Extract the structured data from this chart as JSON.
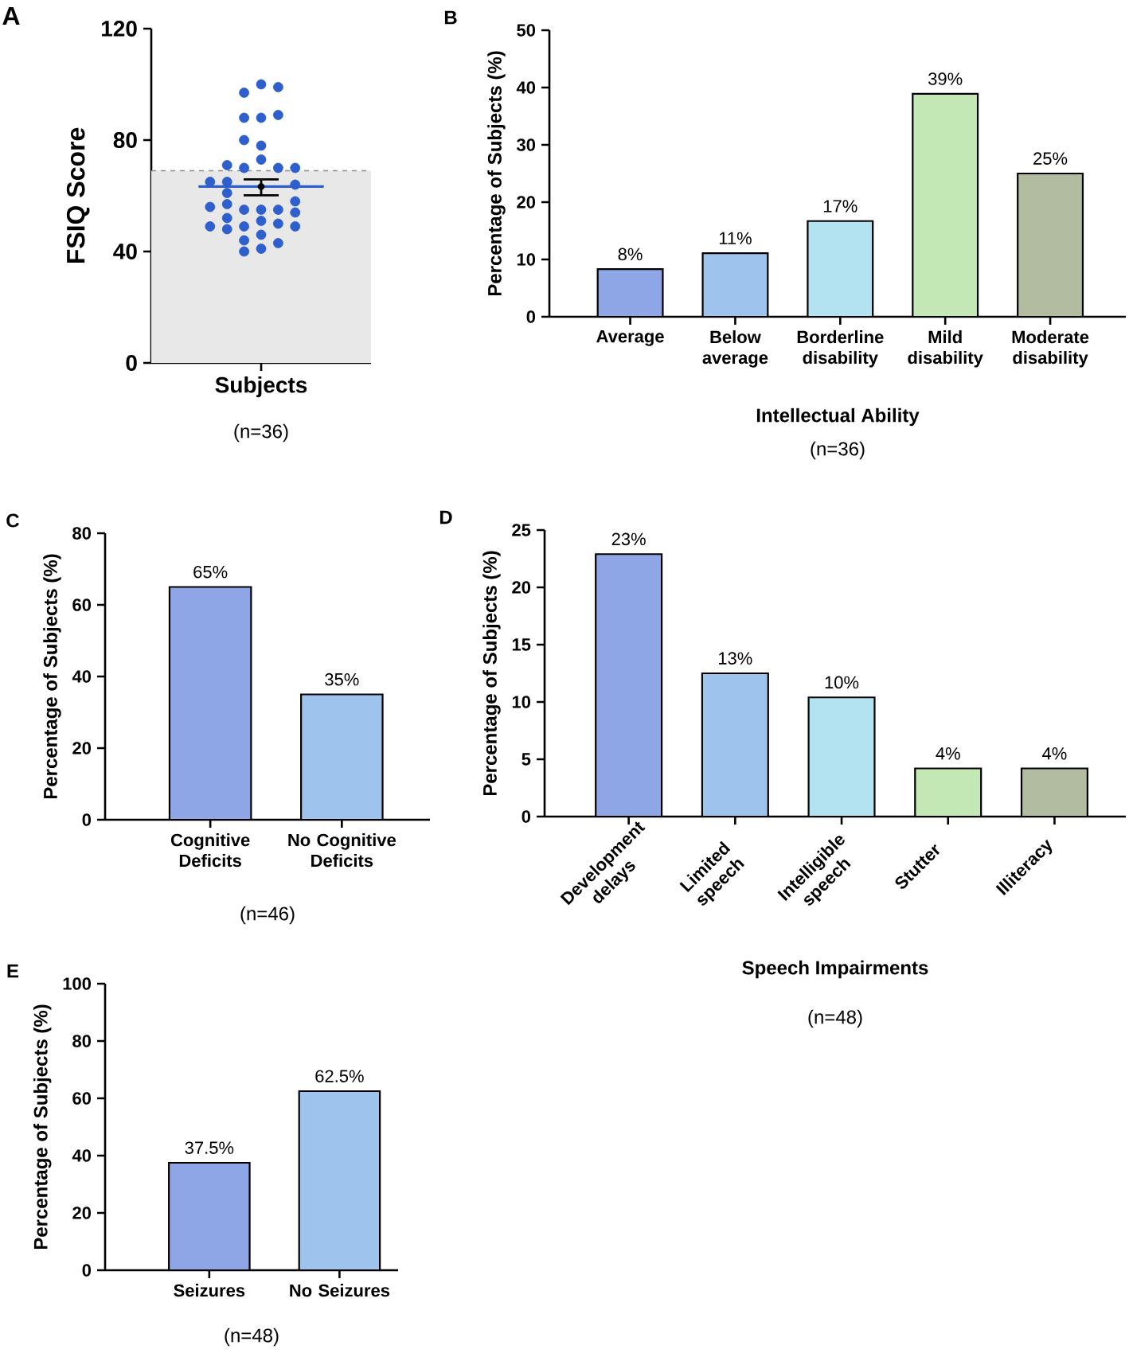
{
  "chart_data": [
    {
      "type": "scatter",
      "title": "A",
      "ylabel": "FSIQ Score",
      "marker": "circle",
      "categories": [
        "Subjects"
      ],
      "ylim": [
        0,
        120
      ],
      "yticks": [
        0,
        40,
        80,
        120
      ],
      "bands": [
        {
          "axis": "y",
          "from": 0,
          "to": 69,
          "color": "#e8e8e8"
        }
      ],
      "ref_lines": [
        {
          "axis": "y",
          "value": 69,
          "line_style": "dashed",
          "color": "#8c8c8c"
        },
        {
          "axis": "y",
          "value": 63.3,
          "line_style": "solid",
          "color": "#2f5fcc"
        }
      ],
      "series": [
        {
          "type": "scatter",
          "color": "#2f5fcc",
          "x": [
            "Subjects",
            "Subjects",
            "Subjects",
            "Subjects",
            "Subjects",
            "Subjects",
            "Subjects",
            "Subjects",
            "Subjects",
            "Subjects",
            "Subjects",
            "Subjects",
            "Subjects",
            "Subjects",
            "Subjects",
            "Subjects",
            "Subjects",
            "Subjects",
            "Subjects",
            "Subjects",
            "Subjects",
            "Subjects",
            "Subjects",
            "Subjects",
            "Subjects",
            "Subjects",
            "Subjects",
            "Subjects",
            "Subjects",
            "Subjects",
            "Subjects",
            "Subjects",
            "Subjects",
            "Subjects",
            "Subjects",
            "Subjects"
          ],
          "values": [
            100,
            97,
            99,
            88,
            88,
            89,
            78,
            80,
            73,
            70,
            70,
            71,
            70,
            65,
            64,
            65,
            61,
            58,
            57,
            55,
            55,
            55,
            56,
            54,
            52,
            51,
            49,
            50,
            49,
            49,
            48,
            46,
            44,
            43,
            41,
            40
          ]
        },
        {
          "type": "scatter",
          "color": "#000000",
          "x": [
            "Subjects"
          ],
          "values": [
            63.3
          ],
          "errors": [
            [
              60.2,
              65.9
            ]
          ]
        }
      ],
      "annotations": [
        "(n=36)"
      ]
    },
    {
      "type": "bar",
      "title": "B",
      "xlabel": "Intellectual Ability",
      "ylabel": "Percentage of Subjects (%)",
      "categories": [
        "Average",
        "Below average",
        "Borderline disability",
        "Mild disability",
        "Moderate disability"
      ],
      "values": [
        8.3,
        11.1,
        16.7,
        38.9,
        25
      ],
      "value_labels": [
        "8%",
        "11%",
        "17%",
        "39%",
        "25%"
      ],
      "colors": [
        "#8fa6e6",
        "#9ec4ee",
        "#b3e3f1",
        "#c4e8b5",
        "#b1bca1"
      ],
      "ylim": [
        0,
        50
      ],
      "yticks": [
        0,
        10,
        20,
        30,
        40,
        50
      ],
      "annotations": [
        "(n=36)"
      ]
    },
    {
      "type": "bar",
      "title": "C",
      "ylabel": "Percentage of Subjects (%)",
      "categories": [
        "Cognitive Deficits",
        "No Cognitive Deficits"
      ],
      "values": [
        65,
        35
      ],
      "value_labels": [
        "65%",
        "35%"
      ],
      "colors": [
        "#8fa6e6",
        "#9ec4ee"
      ],
      "ylim": [
        0,
        80
      ],
      "yticks": [
        0,
        20,
        40,
        60,
        80
      ],
      "annotations": [
        "(n=46)"
      ]
    },
    {
      "type": "bar",
      "title": "D",
      "xlabel": "Speech Impairments",
      "ylabel": "Percentage of Subjects (%)",
      "categories": [
        "Development delays",
        "Limited speech",
        "Intelligible speech",
        "Stutter",
        "Illiteracy"
      ],
      "values": [
        22.9,
        12.5,
        10.4,
        4.2,
        4.2
      ],
      "value_labels": [
        "23%",
        "13%",
        "10%",
        "4%",
        "4%"
      ],
      "colors": [
        "#8fa6e6",
        "#9ec4ee",
        "#b3e3f1",
        "#c4e8b5",
        "#b1bca1"
      ],
      "ylim": [
        0,
        25
      ],
      "yticks": [
        0,
        5,
        10,
        15,
        20,
        25
      ],
      "annotations": [
        "(n=48)"
      ]
    },
    {
      "type": "bar",
      "title": "E",
      "ylabel": "Percentage of Subjects (%)",
      "categories": [
        "Seizures",
        "No Seizures"
      ],
      "values": [
        37.5,
        62.5
      ],
      "value_labels": [
        "37.5%",
        "62.5%"
      ],
      "colors": [
        "#8fa6e6",
        "#9ec4ee"
      ],
      "ylim": [
        0,
        100
      ],
      "yticks": [
        0,
        20,
        40,
        60,
        80,
        100
      ],
      "annotations": [
        "(n=48)"
      ]
    }
  ]
}
